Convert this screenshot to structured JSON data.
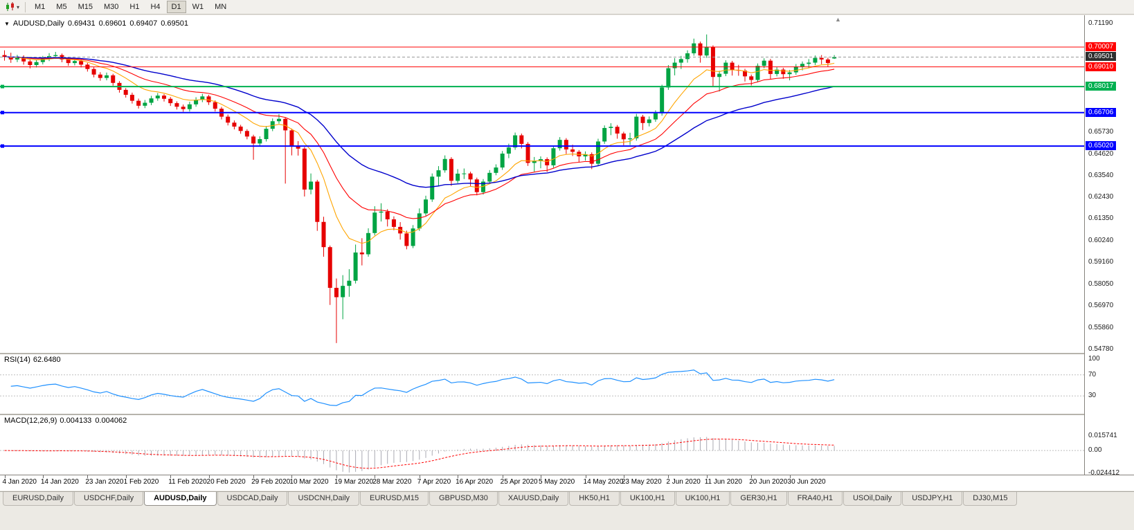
{
  "toolbar": {
    "chart_icon": "candlestick-chart-icon",
    "timeframes": [
      "M1",
      "M5",
      "M15",
      "M30",
      "H1",
      "H4",
      "D1",
      "W1",
      "MN"
    ],
    "active_timeframe": "D1"
  },
  "chart_data": {
    "type": "candlestick",
    "symbol": "AUDUSD",
    "timeframe": "Daily",
    "symbol_label": "AUDUSD,Daily",
    "ohlc": {
      "open": "0.69431",
      "high": "0.69601",
      "low": "0.69407",
      "close": "0.69501"
    },
    "current_price": 0.69501,
    "price_axis": {
      "max": 0.7119,
      "min": 0.5478,
      "ticks": [
        "0.71190",
        "0.65730",
        "0.64620",
        "0.63540",
        "0.62430",
        "0.61350",
        "0.60240",
        "0.59160",
        "0.58050",
        "0.56970",
        "0.55860",
        "0.54780"
      ]
    },
    "colors": {
      "bull": "#00A443",
      "bear": "#E60000",
      "ma_fast": "#FFA500",
      "ma_mid": "#FF0000",
      "ma_slow": "#0000CC",
      "rsi": "#1E90FF",
      "hist": "#A9A9B2",
      "signal": "#FF0000",
      "hline_red": "#FF0000",
      "hline_green": "#00B050",
      "hline_blue": "#0000FF",
      "current_price_bg": "#2E2E2E"
    },
    "moving_averages": [
      {
        "period": 10,
        "color_key": "ma_fast",
        "width": 1.1
      },
      {
        "period": 20,
        "color_key": "ma_mid",
        "width": 1.1
      },
      {
        "period": 40,
        "color_key": "ma_slow",
        "width": 1.4
      }
    ],
    "hlines": [
      {
        "price": 0.70007,
        "label": "0.70007",
        "color": "#FF0000",
        "width": 1,
        "handle": false
      },
      {
        "price": 0.6901,
        "label": "0.69010",
        "color": "#FF0000",
        "width": 1,
        "handle": false
      },
      {
        "price": 0.68017,
        "label": "0.68017",
        "color": "#00B050",
        "width": 2,
        "handle": true
      },
      {
        "price": 0.66706,
        "label": "0.66706",
        "color": "#0000FF",
        "width": 2,
        "handle": true
      },
      {
        "price": 0.6502,
        "label": "0.65020",
        "color": "#0000FF",
        "width": 2,
        "handle": true
      }
    ],
    "dates": [
      "4 Jan 2020",
      "14 Jan 2020",
      "23 Jan 2020",
      "1 Feb 2020",
      "11 Feb 2020",
      "20 Feb 2020",
      "29 Feb 2020",
      "10 Mar 2020",
      "19 Mar 2020",
      "28 Mar 2020",
      "7 Apr 2020",
      "16 Apr 2020",
      "25 Apr 2020",
      "5 May 2020",
      "14 May 2020",
      "23 May 2020",
      "2 Jun 2020",
      "11 Jun 2020",
      "20 Jun 2020",
      "30 Jun 2020"
    ],
    "date_tick_indices": [
      0,
      6,
      13,
      19,
      26,
      32,
      39,
      45,
      52,
      58,
      65,
      71,
      78,
      84,
      91,
      97,
      104,
      110,
      117,
      123
    ],
    "candles": [
      [
        0.696,
        0.6984,
        0.6932,
        0.6951
      ],
      [
        0.6951,
        0.6972,
        0.6921,
        0.6938
      ],
      [
        0.6938,
        0.6961,
        0.6925,
        0.6946
      ],
      [
        0.6946,
        0.6959,
        0.6912,
        0.6928
      ],
      [
        0.6928,
        0.694,
        0.6893,
        0.691
      ],
      [
        0.691,
        0.6937,
        0.6898,
        0.6925
      ],
      [
        0.6925,
        0.6956,
        0.6913,
        0.6942
      ],
      [
        0.6942,
        0.697,
        0.693,
        0.6955
      ],
      [
        0.6955,
        0.6976,
        0.6941,
        0.696
      ],
      [
        0.696,
        0.6968,
        0.6924,
        0.6938
      ],
      [
        0.6938,
        0.695,
        0.6906,
        0.692
      ],
      [
        0.692,
        0.6943,
        0.6908,
        0.693
      ],
      [
        0.693,
        0.6939,
        0.6898,
        0.6912
      ],
      [
        0.6912,
        0.6921,
        0.6877,
        0.689
      ],
      [
        0.689,
        0.6899,
        0.6848,
        0.6862
      ],
      [
        0.6862,
        0.6874,
        0.6831,
        0.6845
      ],
      [
        0.6845,
        0.6872,
        0.6833,
        0.6858
      ],
      [
        0.6858,
        0.6866,
        0.6806,
        0.682
      ],
      [
        0.682,
        0.6829,
        0.6771,
        0.6785
      ],
      [
        0.6785,
        0.6794,
        0.6746,
        0.676
      ],
      [
        0.676,
        0.6771,
        0.6716,
        0.673
      ],
      [
        0.673,
        0.6741,
        0.6691,
        0.6705
      ],
      [
        0.6705,
        0.6734,
        0.6693,
        0.672
      ],
      [
        0.672,
        0.6755,
        0.6708,
        0.6742
      ],
      [
        0.6742,
        0.6769,
        0.673,
        0.6756
      ],
      [
        0.6756,
        0.6764,
        0.6726,
        0.674
      ],
      [
        0.674,
        0.6749,
        0.6704,
        0.6718
      ],
      [
        0.6718,
        0.6727,
        0.6686,
        0.67
      ],
      [
        0.67,
        0.6711,
        0.6675,
        0.6688
      ],
      [
        0.6688,
        0.6725,
        0.6676,
        0.6712
      ],
      [
        0.6712,
        0.6748,
        0.67,
        0.6735
      ],
      [
        0.6735,
        0.6765,
        0.6723,
        0.6752
      ],
      [
        0.6752,
        0.676,
        0.6709,
        0.6723
      ],
      [
        0.6723,
        0.6732,
        0.6676,
        0.669
      ],
      [
        0.669,
        0.6699,
        0.6636,
        0.665
      ],
      [
        0.665,
        0.6661,
        0.6606,
        0.662
      ],
      [
        0.662,
        0.6631,
        0.6586,
        0.66
      ],
      [
        0.66,
        0.6609,
        0.6564,
        0.6578
      ],
      [
        0.6578,
        0.6587,
        0.6536,
        0.655
      ],
      [
        0.655,
        0.6559,
        0.6433,
        0.6515
      ],
      [
        0.6515,
        0.6551,
        0.6503,
        0.6537
      ],
      [
        0.6537,
        0.6603,
        0.6525,
        0.6589
      ],
      [
        0.6589,
        0.6641,
        0.6577,
        0.6627
      ],
      [
        0.6627,
        0.6663,
        0.6615,
        0.6639
      ],
      [
        0.6639,
        0.6647,
        0.6313,
        0.6581
      ],
      [
        0.6581,
        0.659,
        0.6455,
        0.65
      ],
      [
        0.65,
        0.6527,
        0.6454,
        0.6489
      ],
      [
        0.6489,
        0.6497,
        0.6248,
        0.6283
      ],
      [
        0.6283,
        0.6364,
        0.6259,
        0.6323
      ],
      [
        0.6323,
        0.6332,
        0.6075,
        0.612
      ],
      [
        0.612,
        0.6146,
        0.5945,
        0.5993
      ],
      [
        0.5993,
        0.6001,
        0.5702,
        0.5788
      ],
      [
        0.5788,
        0.5835,
        0.551,
        0.5741
      ],
      [
        0.5741,
        0.5852,
        0.563,
        0.5798
      ],
      [
        0.5798,
        0.5882,
        0.5743,
        0.5824
      ],
      [
        0.5824,
        0.6006,
        0.581,
        0.5966
      ],
      [
        0.5966,
        0.6038,
        0.5901,
        0.5957
      ],
      [
        0.5957,
        0.6088,
        0.5945,
        0.6064
      ],
      [
        0.6064,
        0.6199,
        0.6052,
        0.6167
      ],
      [
        0.6167,
        0.6214,
        0.6122,
        0.6172
      ],
      [
        0.6172,
        0.6184,
        0.6097,
        0.6133
      ],
      [
        0.6133,
        0.6148,
        0.6078,
        0.6095
      ],
      [
        0.6095,
        0.6119,
        0.6031,
        0.6062
      ],
      [
        0.6062,
        0.6076,
        0.5982,
        0.5999
      ],
      [
        0.5999,
        0.6104,
        0.5988,
        0.6087
      ],
      [
        0.6087,
        0.6188,
        0.6075,
        0.6163
      ],
      [
        0.6163,
        0.6252,
        0.6151,
        0.6233
      ],
      [
        0.6233,
        0.6364,
        0.6221,
        0.6348
      ],
      [
        0.6348,
        0.6401,
        0.6303,
        0.638
      ],
      [
        0.638,
        0.6455,
        0.6368,
        0.6437
      ],
      [
        0.6437,
        0.6446,
        0.6302,
        0.6327
      ],
      [
        0.6327,
        0.6386,
        0.6315,
        0.6363
      ],
      [
        0.6363,
        0.6389,
        0.6336,
        0.6364
      ],
      [
        0.6364,
        0.6373,
        0.63,
        0.6334
      ],
      [
        0.6334,
        0.6343,
        0.6254,
        0.627
      ],
      [
        0.627,
        0.6336,
        0.6258,
        0.6323
      ],
      [
        0.6323,
        0.6381,
        0.6311,
        0.6367
      ],
      [
        0.6367,
        0.641,
        0.6355,
        0.6394
      ],
      [
        0.6394,
        0.6477,
        0.6382,
        0.6464
      ],
      [
        0.6464,
        0.6514,
        0.6441,
        0.6495
      ],
      [
        0.6495,
        0.657,
        0.6483,
        0.6556
      ],
      [
        0.6556,
        0.6565,
        0.649,
        0.6513
      ],
      [
        0.6513,
        0.6522,
        0.6402,
        0.6417
      ],
      [
        0.6417,
        0.6447,
        0.6373,
        0.6428
      ],
      [
        0.6428,
        0.645,
        0.639,
        0.6436
      ],
      [
        0.6436,
        0.6445,
        0.6372,
        0.6405
      ],
      [
        0.6405,
        0.6504,
        0.6393,
        0.6491
      ],
      [
        0.6491,
        0.6547,
        0.6479,
        0.6533
      ],
      [
        0.6533,
        0.6542,
        0.6462,
        0.6485
      ],
      [
        0.6485,
        0.6509,
        0.6452,
        0.6473
      ],
      [
        0.6473,
        0.6482,
        0.6422,
        0.645
      ],
      [
        0.645,
        0.6475,
        0.6429,
        0.6461
      ],
      [
        0.6461,
        0.647,
        0.6386,
        0.6413
      ],
      [
        0.6413,
        0.6539,
        0.6401,
        0.6525
      ],
      [
        0.6525,
        0.6606,
        0.6513,
        0.6593
      ],
      [
        0.6593,
        0.6617,
        0.6557,
        0.6599
      ],
      [
        0.6599,
        0.6608,
        0.6539,
        0.6565
      ],
      [
        0.6565,
        0.6574,
        0.6506,
        0.6536
      ],
      [
        0.6536,
        0.6569,
        0.6507,
        0.6541
      ],
      [
        0.6541,
        0.6664,
        0.6529,
        0.665
      ],
      [
        0.665,
        0.6659,
        0.6583,
        0.6618
      ],
      [
        0.6618,
        0.6651,
        0.6601,
        0.6636
      ],
      [
        0.6636,
        0.6682,
        0.6624,
        0.6667
      ],
      [
        0.6667,
        0.6811,
        0.6655,
        0.6797
      ],
      [
        0.6797,
        0.691,
        0.6785,
        0.6894
      ],
      [
        0.6894,
        0.6945,
        0.6858,
        0.6922
      ],
      [
        0.6922,
        0.6956,
        0.689,
        0.694
      ],
      [
        0.694,
        0.6984,
        0.6922,
        0.6969
      ],
      [
        0.6969,
        0.7043,
        0.6957,
        0.7019
      ],
      [
        0.7019,
        0.7028,
        0.6922,
        0.6958
      ],
      [
        0.6958,
        0.7064,
        0.6946,
        0.7
      ],
      [
        0.7,
        0.7009,
        0.6799,
        0.685
      ],
      [
        0.685,
        0.6881,
        0.6777,
        0.6866
      ],
      [
        0.6866,
        0.6934,
        0.6854,
        0.6922
      ],
      [
        0.6922,
        0.6931,
        0.6857,
        0.6885
      ],
      [
        0.6885,
        0.6911,
        0.6856,
        0.6882
      ],
      [
        0.6882,
        0.6891,
        0.6827,
        0.6853
      ],
      [
        0.6853,
        0.6862,
        0.6807,
        0.6835
      ],
      [
        0.6835,
        0.6918,
        0.6823,
        0.6906
      ],
      [
        0.6906,
        0.6944,
        0.6894,
        0.6932
      ],
      [
        0.6932,
        0.6941,
        0.684,
        0.6865
      ],
      [
        0.6865,
        0.6899,
        0.6853,
        0.6887
      ],
      [
        0.6887,
        0.6896,
        0.6841,
        0.6864
      ],
      [
        0.6864,
        0.6885,
        0.6833,
        0.6873
      ],
      [
        0.6873,
        0.6915,
        0.6861,
        0.6903
      ],
      [
        0.6903,
        0.6928,
        0.6883,
        0.6916
      ],
      [
        0.6916,
        0.694,
        0.6896,
        0.6922
      ],
      [
        0.6922,
        0.6958,
        0.691,
        0.6946
      ],
      [
        0.6946,
        0.696,
        0.6914,
        0.6938
      ],
      [
        0.6938,
        0.6947,
        0.6902,
        0.692
      ],
      [
        0.69431,
        0.69601,
        0.69407,
        0.69501
      ]
    ],
    "rsi": {
      "label": "RSI(14)",
      "value": "62.6480",
      "period": 14,
      "levels": [
        70,
        30
      ],
      "axis_labels": [
        {
          "text": "100",
          "value": 100
        },
        {
          "text": "70",
          "value": 70
        },
        {
          "text": "30",
          "value": 30
        }
      ]
    },
    "macd": {
      "label": "MACD(12,26,9)",
      "value1": "0.004133",
      "value2": "0.004062",
      "fast": 12,
      "slow": 26,
      "signal": 9,
      "range": {
        "max": 0.015741,
        "min": -0.024412
      },
      "axis_labels": [
        {
          "text": "0.015741",
          "value": 0.015741
        },
        {
          "text": "0.00",
          "value": 0
        },
        {
          "text": "-0.024412",
          "value": -0.024412
        }
      ]
    }
  },
  "tabs": {
    "items": [
      "EURUSD,Daily",
      "USDCHF,Daily",
      "AUDUSD,Daily",
      "USDCAD,Daily",
      "USDCNH,Daily",
      "EURUSD,M15",
      "GBPUSD,M30",
      "XAUUSD,Daily",
      "HK50,H1",
      "UK100,H1",
      "UK100,H1",
      "GER30,H1",
      "FRA40,H1",
      "USOil,Daily",
      "USDJPY,H1",
      "DJ30,M15"
    ],
    "active": "AUDUSD,Daily",
    "active_index": 2
  }
}
